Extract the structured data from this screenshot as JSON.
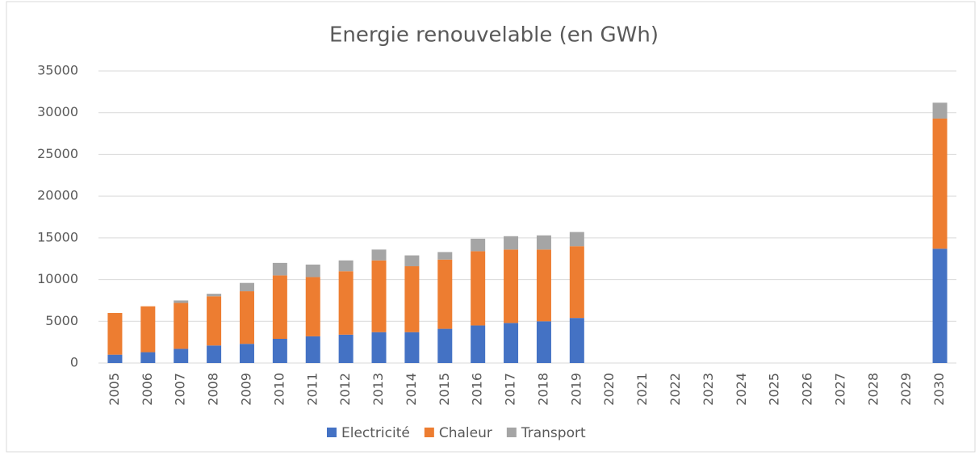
{
  "chart_data": {
    "type": "bar",
    "stacked": true,
    "title": "Energie renouvelable (en GWh)",
    "categories": [
      "2005",
      "2006",
      "2007",
      "2008",
      "2009",
      "2010",
      "2011",
      "2012",
      "2013",
      "2014",
      "2015",
      "2016",
      "2017",
      "2018",
      "2019",
      "2020",
      "2021",
      "2022",
      "2023",
      "2024",
      "2025",
      "2026",
      "2027",
      "2028",
      "2029",
      "2030"
    ],
    "series": [
      {
        "name": "Electricité",
        "color": "#4472c4",
        "values": [
          1000,
          1300,
          1700,
          2100,
          2300,
          2900,
          3200,
          3400,
          3700,
          3700,
          4100,
          4500,
          4800,
          5000,
          5400,
          null,
          null,
          null,
          null,
          null,
          null,
          null,
          null,
          null,
          null,
          13700
        ]
      },
      {
        "name": "Chaleur",
        "color": "#ed7d31",
        "values": [
          5000,
          5500,
          5500,
          5900,
          6300,
          7600,
          7100,
          7600,
          8600,
          7900,
          8300,
          8900,
          8800,
          8600,
          8600,
          null,
          null,
          null,
          null,
          null,
          null,
          null,
          null,
          null,
          null,
          15600
        ]
      },
      {
        "name": "Transport",
        "color": "#a5a5a5",
        "values": [
          0,
          0,
          300,
          300,
          1000,
          1500,
          1500,
          1300,
          1300,
          1300,
          900,
          1500,
          1600,
          1700,
          1700,
          null,
          null,
          null,
          null,
          null,
          null,
          null,
          null,
          null,
          null,
          1900
        ]
      }
    ],
    "ylim": [
      0,
      35000
    ],
    "yticks": [
      0,
      5000,
      10000,
      15000,
      20000,
      25000,
      30000,
      35000
    ],
    "grid": true,
    "legend": "bottom"
  }
}
